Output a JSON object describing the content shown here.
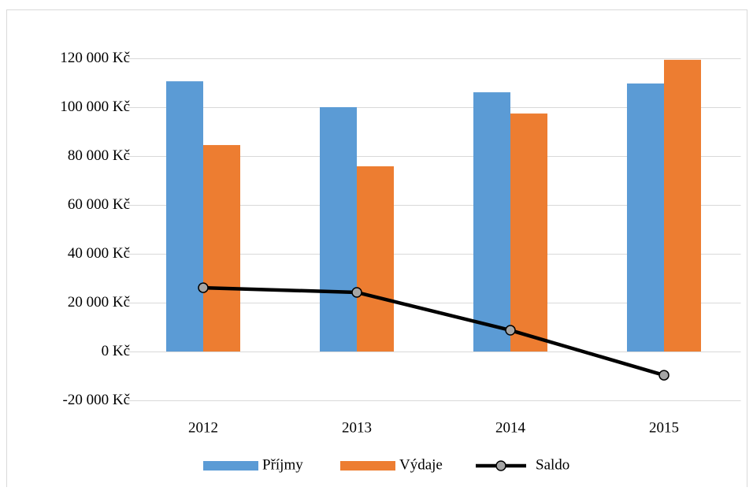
{
  "chart_data": {
    "type": "bar_line",
    "categories": [
      "2012",
      "2013",
      "2014",
      "2015"
    ],
    "series": [
      {
        "name": "Příjmy",
        "type": "bar",
        "color": "#5b9bd5",
        "values": [
          110600,
          100000,
          106100,
          109700
        ]
      },
      {
        "name": "Výdaje",
        "type": "bar",
        "color": "#ed7d31",
        "values": [
          84500,
          75800,
          97400,
          119400
        ]
      },
      {
        "name": "Saldo",
        "type": "line",
        "color": "#000000",
        "marker_color": "#a5a5a5",
        "values": [
          26100,
          24200,
          8700,
          -9700
        ]
      }
    ],
    "ylim": [
      -20000,
      120000
    ],
    "yticks": [
      {
        "value": -20000,
        "label": "-20 000 Kč"
      },
      {
        "value": 0,
        "label": "0 Kč"
      },
      {
        "value": 20000,
        "label": "20 000 Kč"
      },
      {
        "value": 40000,
        "label": "40 000 Kč"
      },
      {
        "value": 60000,
        "label": "60 000 Kč"
      },
      {
        "value": 80000,
        "label": "80 000 Kč"
      },
      {
        "value": 100000,
        "label": "100 000 Kč"
      },
      {
        "value": 120000,
        "label": "120 000 Kč"
      }
    ],
    "grid": true,
    "legend": "bottom"
  }
}
